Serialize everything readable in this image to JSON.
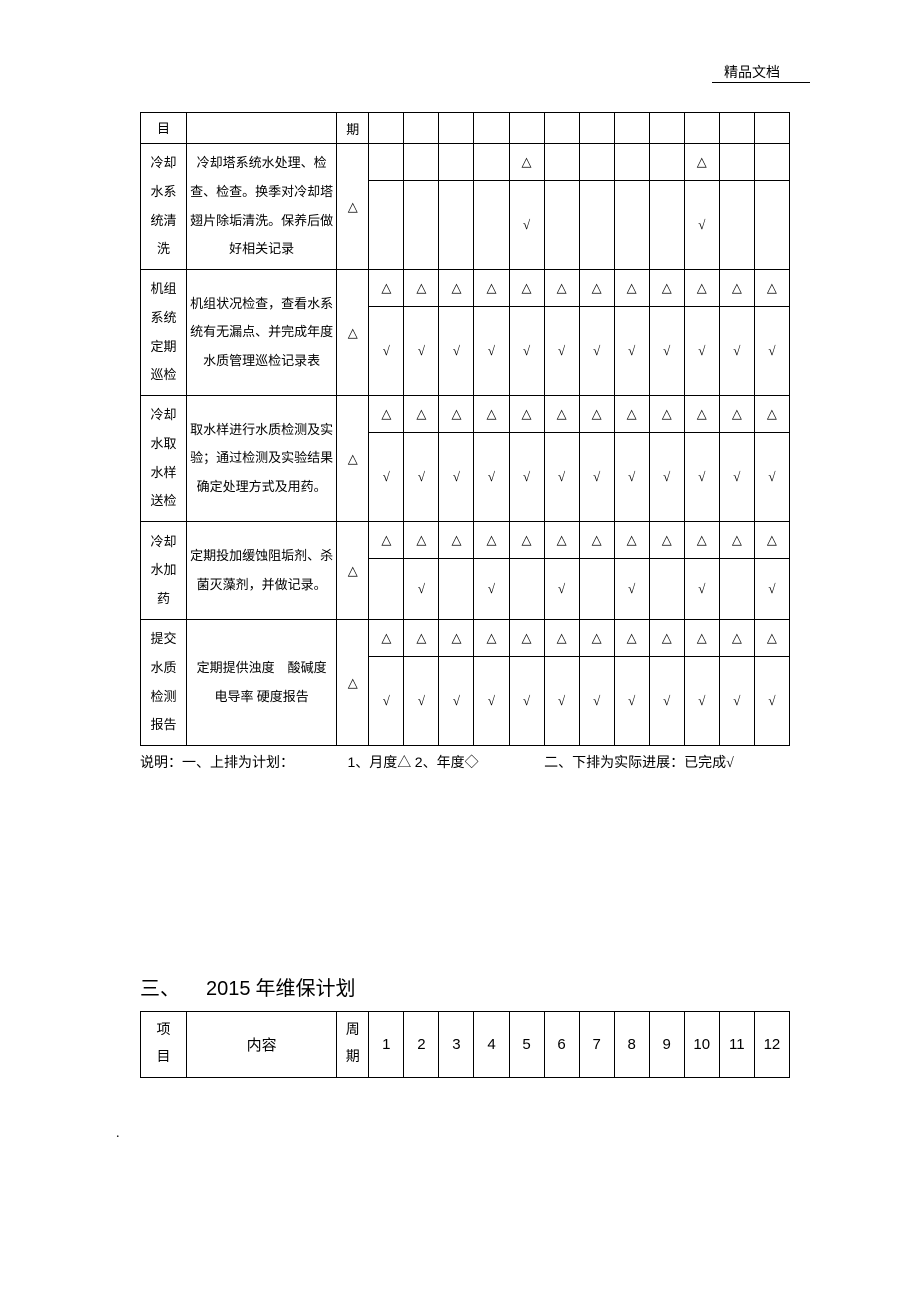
{
  "header": {
    "label": "精品文档"
  },
  "symbols": {
    "tri": "△",
    "chk": "√",
    "diamond": "◇"
  },
  "table1": {
    "headerRow": {
      "proj": "目",
      "content": "",
      "period": "期"
    },
    "rows": [
      {
        "proj": "冷却<br>水系<br>统清<br>洗",
        "content": "冷却塔系统水处理、检查、检查。换季对冷却塔翅片除垢清洗。保养后做好相关记录",
        "period": "△",
        "plan": [
          "",
          "",
          "",
          "",
          "△",
          "",
          "",
          "",
          "",
          "△",
          "",
          ""
        ],
        "actual": [
          "",
          "",
          "",
          "",
          "√",
          "",
          "",
          "",
          "",
          "√",
          "",
          ""
        ],
        "actualTall": true
      },
      {
        "proj": "机组<br>系统<br>定期<br>巡检",
        "content": "机组状况检查，查看水系统有无漏点、并完成年度水质管理巡检记录表",
        "period": "△",
        "plan": [
          "△",
          "△",
          "△",
          "△",
          "△",
          "△",
          "△",
          "△",
          "△",
          "△",
          "△",
          "△"
        ],
        "actual": [
          "√",
          "√",
          "√",
          "√",
          "√",
          "√",
          "√",
          "√",
          "√",
          "√",
          "√",
          "√"
        ],
        "actualTall": true
      },
      {
        "proj": "冷却<br>水取<br>水样<br>送检",
        "content": "取水样进行水质检测及实验；通过检测及实验结果确定处理方式及用药。",
        "period": "△",
        "plan": [
          "△",
          "△",
          "△",
          "△",
          "△",
          "△",
          "△",
          "△",
          "△",
          "△",
          "△",
          "△"
        ],
        "actual": [
          "√",
          "√",
          "√",
          "√",
          "√",
          "√",
          "√",
          "√",
          "√",
          "√",
          "√",
          "√"
        ],
        "actualTall": true
      },
      {
        "proj": "冷却<br>水加<br>药",
        "content": "定期投加缓蚀阻垢剂、杀菌灭藻剂，并做记录。",
        "period": "△",
        "plan": [
          "△",
          "△",
          "△",
          "△",
          "△",
          "△",
          "△",
          "△",
          "△",
          "△",
          "△",
          "△"
        ],
        "actual": [
          "",
          "√",
          "",
          "√",
          "",
          "√",
          "",
          "√",
          "",
          "√",
          "",
          "√"
        ],
        "actualTall": false,
        "actualMid": true
      },
      {
        "proj": "提交<br>水质<br>检测<br>报告",
        "content": "定期提供浊度　酸碱度　电导率 硬度报告",
        "period": "△",
        "plan": [
          "△",
          "△",
          "△",
          "△",
          "△",
          "△",
          "△",
          "△",
          "△",
          "△",
          "△",
          "△"
        ],
        "actual": [
          "√",
          "√",
          "√",
          "√",
          "√",
          "√",
          "√",
          "√",
          "√",
          "√",
          "√",
          "√"
        ],
        "actualTall": true
      }
    ]
  },
  "note": {
    "seg1": "说明：一、上排为计划：",
    "seg2a": "1",
    "seg2b": "、月度△ ",
    "seg2c": "2",
    "seg2d": "、年度◇",
    "seg3": "二、下排为实际进展：已完成√"
  },
  "section3": {
    "num": "三、",
    "year": "2015",
    "rest": " 年维保计划"
  },
  "table2": {
    "proj": "项<br>目",
    "content": "内容",
    "period": "周<br>期",
    "months": [
      "1",
      "2",
      "3",
      "4",
      "5",
      "6",
      "7",
      "8",
      "9",
      "10",
      "11",
      "12"
    ]
  },
  "footer": {
    "dot": "."
  }
}
